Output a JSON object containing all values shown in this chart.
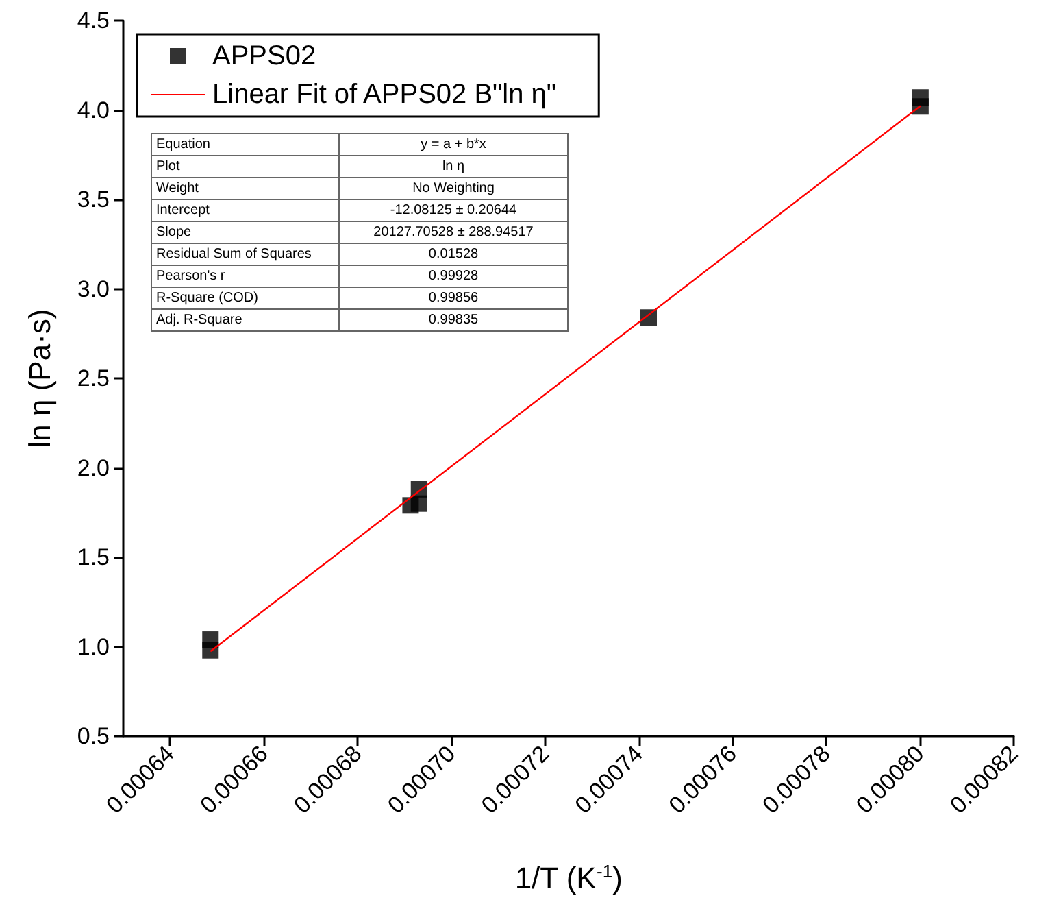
{
  "chart_data": {
    "type": "scatter",
    "xlabel": "1/T (K$^{-1}$)",
    "ylabel": "ln η (Pa·s)",
    "series": [
      {
        "name": "APPS02",
        "marker": "square",
        "color": "#000000",
        "x": [
          0.0006486,
          0.0006486,
          0.0006913,
          0.0006931,
          0.0006931,
          0.0007421,
          0.0008001,
          0.0008001
        ],
        "values": [
          0.98,
          1.04,
          1.79,
          1.8,
          1.88,
          2.84,
          4.02,
          4.07
        ]
      },
      {
        "name": "Linear Fit of APPS02 B\"ln η\"",
        "type": "line",
        "marker": "none",
        "line_style": "solid",
        "color": "#ff0000",
        "x": [
          0.0006486,
          0.0008001
        ],
        "values": [
          0.974,
          4.023
        ]
      }
    ],
    "xlim": [
      0.00063,
      0.00082
    ],
    "xticks": [
      0.00064,
      0.00066,
      0.00068,
      {
        "value": 0.0007,
        "label": "0.00070"
      },
      0.00072,
      0.00074,
      0.00076,
      0.00078,
      {
        "value": 0.0008,
        "label": "0.00080"
      },
      0.00082
    ],
    "ylim": [
      0.5,
      4.5
    ],
    "yticks": [
      0.5,
      {
        "value": 1,
        "label": "1.0"
      },
      1.5,
      {
        "value": 2,
        "label": "2.0"
      },
      2.5,
      {
        "value": 3,
        "label": "3.0"
      },
      3.5,
      {
        "value": 4,
        "label": "4.0"
      },
      4.5
    ],
    "legend": "top left",
    "grid": false,
    "annotations": [
      "Equation",
      "y = a + b*x",
      "Plot",
      "ln η",
      "Weight",
      "No Weighting",
      "Intercept",
      "-12.08125 ± 0.20644",
      "Slope",
      "20127.70528 ± 288.94517",
      "Residual Sum of Squares",
      "0.01528",
      "Pearson's r",
      "0.99928",
      "R-Square (COD)",
      "0.99856",
      "Adj. R-Square",
      "0.99835"
    ]
  }
}
